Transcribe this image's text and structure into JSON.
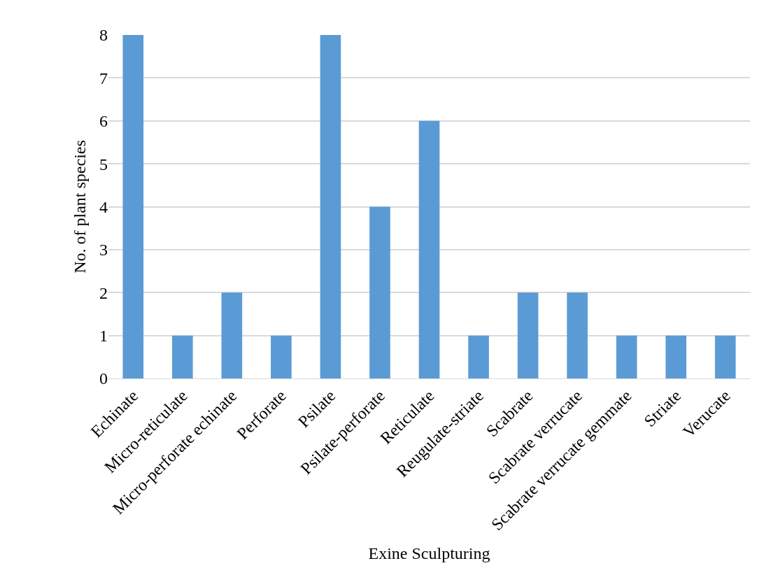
{
  "chart_data": {
    "type": "bar",
    "xlabel": "Exine Sculpturing",
    "ylabel": "No. of plant species",
    "categories": [
      "Echinate",
      "Micro-reticulate",
      "Micro-perforate echinate",
      "Perforate",
      "Psilate",
      "Psilate-perforate",
      "Reticulate",
      "Reugulate-striate",
      "Scabrate",
      "Scabrate verrucate",
      "Scabrate verrucate gemmate",
      "Striate",
      "Verucate"
    ],
    "values": [
      8,
      1,
      2,
      1,
      8,
      4,
      6,
      1,
      2,
      2,
      1,
      1,
      1
    ],
    "color": "#5b9bd5",
    "ylim": [
      0,
      8
    ],
    "yticks": [
      0,
      1,
      2,
      3,
      4,
      5,
      6,
      7,
      8
    ],
    "grid": "y",
    "legend": false
  }
}
